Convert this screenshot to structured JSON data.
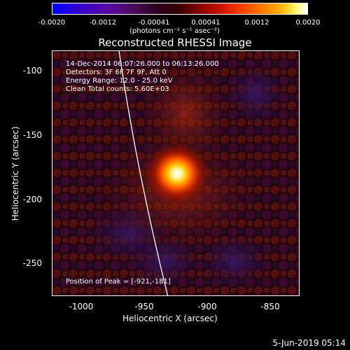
{
  "colorbar": {
    "ticks": [
      "-0.0020",
      "-0.0012",
      "-0.00041",
      "0.00041",
      "0.0012",
      "0.0020"
    ],
    "unit": "(photons cm⁻² s⁻¹ asec⁻²)"
  },
  "title": "Reconstructed RHESSI Image",
  "annotations": {
    "time": "14-Dec-2014 06:07:26.000 to 06:13:26.000",
    "detectors": "Detectors: 3F 6F 7F 9F, Att 0",
    "energy": "Energy Range: 12.0 - 25.0 keV",
    "clean": "Clean     Total counts: 5.60E+03",
    "peak": "Position of Peak = [-921,-181]"
  },
  "axes": {
    "xlabel": "Heliocentric X (arcsec)",
    "ylabel": "Heliocentric Y (arcsec)",
    "xticks": [
      "-1000",
      "-950",
      "-900",
      "-850"
    ],
    "yticks": [
      "-100",
      "-150",
      "-200",
      "-250"
    ]
  },
  "footer": {
    "timestamp": "5-Jun-2019 05:14"
  }
}
